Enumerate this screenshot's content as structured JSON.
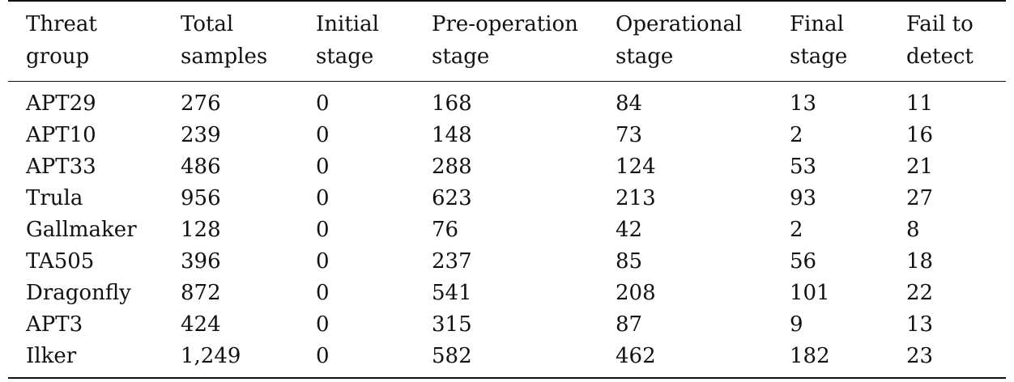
{
  "table": {
    "headers": [
      [
        "Threat",
        "group"
      ],
      [
        "Total",
        "samples"
      ],
      [
        "Initial",
        "stage"
      ],
      [
        "Pre-operation",
        "stage"
      ],
      [
        "Operational",
        "stage"
      ],
      [
        "Final",
        "stage"
      ],
      [
        "Fail to",
        "detect"
      ]
    ],
    "rows": [
      [
        "APT29",
        "276",
        "0",
        "168",
        "84",
        "13",
        "11"
      ],
      [
        "APT10",
        "239",
        "0",
        "148",
        "73",
        "2",
        "16"
      ],
      [
        "APT33",
        "486",
        "0",
        "288",
        "124",
        "53",
        "21"
      ],
      [
        "Trula",
        "956",
        "0",
        "623",
        "213",
        "93",
        "27"
      ],
      [
        "Gallmaker",
        "128",
        "0",
        "76",
        "42",
        "2",
        "8"
      ],
      [
        "TA505",
        "396",
        "0",
        "237",
        "85",
        "56",
        "18"
      ],
      [
        "Dragonfly",
        "872",
        "0",
        "541",
        "208",
        "101",
        "22"
      ],
      [
        "APT3",
        "424",
        "0",
        "315",
        "87",
        "9",
        "13"
      ],
      [
        "Ilker",
        "1,249",
        "0",
        "582",
        "462",
        "182",
        "23"
      ]
    ]
  }
}
